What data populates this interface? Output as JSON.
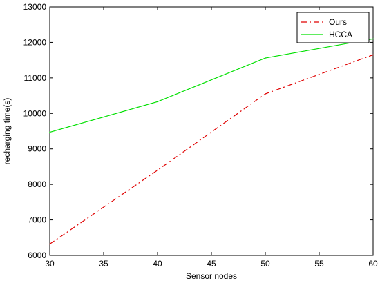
{
  "chart_data": {
    "type": "line",
    "title": "",
    "xlabel": "Sensor nodes",
    "ylabel": "recharging time(s)",
    "xlim": [
      30,
      60
    ],
    "ylim": [
      6000,
      13000
    ],
    "xticks": [
      30,
      35,
      40,
      45,
      50,
      55,
      60
    ],
    "yticks": [
      6000,
      7000,
      8000,
      9000,
      10000,
      11000,
      12000,
      13000
    ],
    "grid": false,
    "legend_position": "top-right",
    "series": [
      {
        "name": "Ours",
        "color": "#e00000",
        "line_style": "dash-dot",
        "x": [
          30,
          40,
          50,
          60
        ],
        "values": [
          6320,
          8400,
          10550,
          11650
        ]
      },
      {
        "name": "HCCA",
        "color": "#00e000",
        "line_style": "solid",
        "x": [
          30,
          40,
          50,
          60
        ],
        "values": [
          9470,
          10330,
          11560,
          12100
        ]
      }
    ]
  }
}
